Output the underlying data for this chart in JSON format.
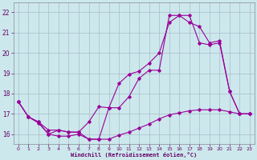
{
  "xlabel": "Windchill (Refroidissement éolien,°C)",
  "background_color": "#cce8ec",
  "line_color": "#990099",
  "grid_color": "#aabbcc",
  "x_ticks": [
    0,
    1,
    2,
    3,
    4,
    5,
    6,
    7,
    8,
    9,
    10,
    11,
    12,
    13,
    14,
    15,
    16,
    17,
    18,
    19,
    20,
    21,
    22,
    23
  ],
  "y_ticks": [
    16,
    17,
    18,
    19,
    20,
    21,
    22
  ],
  "xlim": [
    -0.5,
    23.5
  ],
  "ylim": [
    15.5,
    22.5
  ],
  "line1_x": [
    0,
    1,
    2,
    3,
    4,
    5,
    6,
    7,
    8,
    9,
    10,
    11,
    12,
    13,
    14,
    15,
    16,
    17,
    18,
    19,
    20,
    21,
    22,
    23
  ],
  "line1_y": [
    17.6,
    16.85,
    16.6,
    16.0,
    16.2,
    16.1,
    16.1,
    15.75,
    15.75,
    17.3,
    17.3,
    17.85,
    18.75,
    19.15,
    19.15,
    21.85,
    21.85,
    21.85,
    20.5,
    20.4,
    20.5,
    18.1,
    17.0,
    17.0
  ],
  "line2_x": [
    0,
    1,
    2,
    3,
    4,
    5,
    6,
    7,
    8,
    9,
    10,
    11,
    12,
    13,
    14,
    15,
    16,
    17,
    18,
    19,
    20,
    21,
    22,
    23
  ],
  "line2_y": [
    17.6,
    16.85,
    16.6,
    16.2,
    16.2,
    16.1,
    16.1,
    16.6,
    17.35,
    17.3,
    18.5,
    18.95,
    19.1,
    19.5,
    20.0,
    21.5,
    21.85,
    21.5,
    21.3,
    20.5,
    20.6,
    18.1,
    17.0,
    17.0
  ],
  "line3_x": [
    0,
    1,
    2,
    3,
    4,
    5,
    6,
    7,
    8,
    9,
    10,
    11,
    12,
    13,
    14,
    15,
    16,
    17,
    18,
    19,
    20,
    21,
    22,
    23
  ],
  "line3_y": [
    17.6,
    16.85,
    16.55,
    16.0,
    15.9,
    15.9,
    16.0,
    15.75,
    15.75,
    15.75,
    15.95,
    16.1,
    16.3,
    16.5,
    16.75,
    16.95,
    17.05,
    17.15,
    17.2,
    17.2,
    17.2,
    17.1,
    17.0,
    17.0
  ]
}
